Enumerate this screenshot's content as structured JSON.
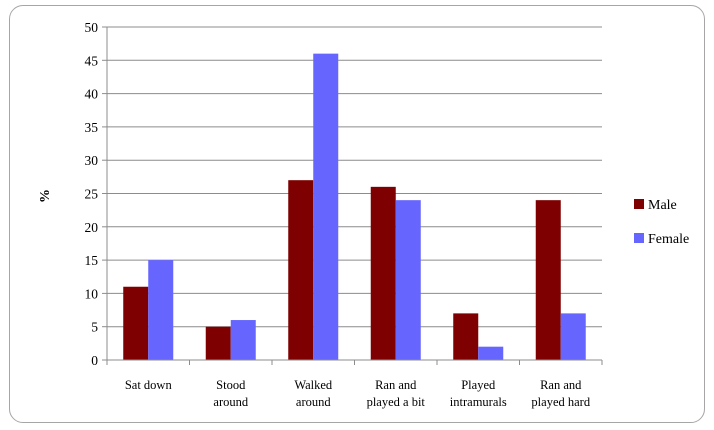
{
  "chart_data": {
    "type": "bar",
    "title": "",
    "xlabel": "",
    "ylabel": "%",
    "ylim": [
      0,
      50
    ],
    "yticks": [
      0,
      5,
      10,
      15,
      20,
      25,
      30,
      35,
      40,
      45,
      50
    ],
    "grid": true,
    "legend_position": "right",
    "categories": [
      [
        "Sat down"
      ],
      [
        "Stood",
        "around"
      ],
      [
        "Walked",
        "around"
      ],
      [
        "Ran and",
        "played a bit"
      ],
      [
        "Played",
        "intramurals"
      ],
      [
        "Ran and",
        "played hard"
      ]
    ],
    "series": [
      {
        "name": "Male",
        "color": "#7f0000",
        "values": [
          11,
          5,
          27,
          26,
          7,
          24
        ]
      },
      {
        "name": "Female",
        "color": "#6666ff",
        "values": [
          15,
          6,
          46,
          24,
          2,
          7
        ]
      }
    ]
  }
}
